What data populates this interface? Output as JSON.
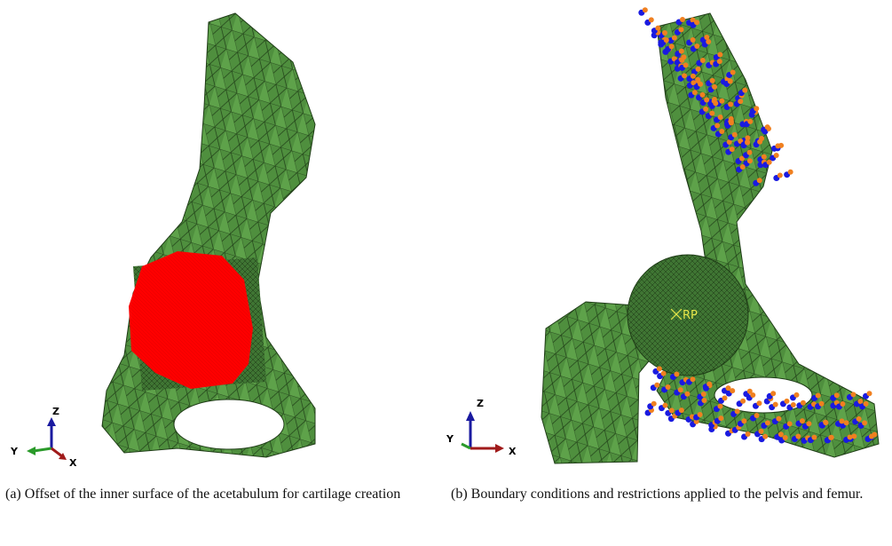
{
  "figure": {
    "panels": [
      {
        "caption": "(a)  Offset of the inner surface of the acetabulum for cartilage creation",
        "triad": {
          "z": "Z",
          "y": "Y",
          "x": "X"
        }
      },
      {
        "caption": "(b)  Boundary conditions and restrictions applied to the pelvis and femur.",
        "triad": {
          "z": "Z",
          "y": "Y",
          "x": "X"
        },
        "reference_point": "RP"
      }
    ]
  }
}
